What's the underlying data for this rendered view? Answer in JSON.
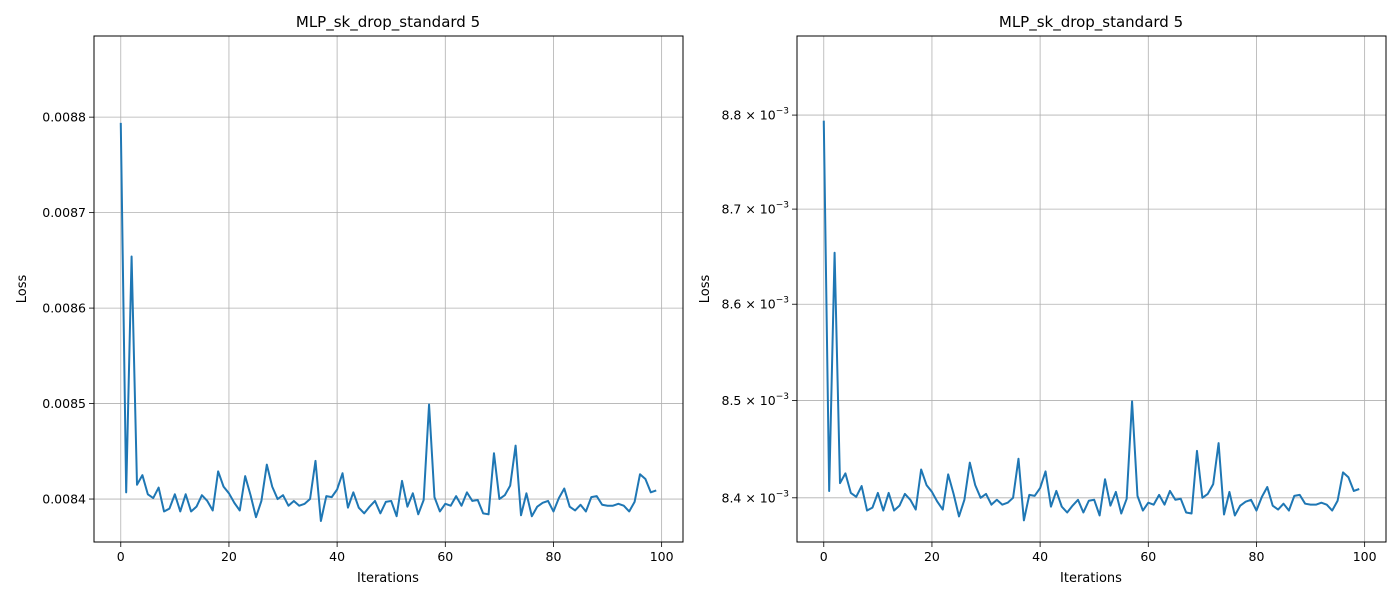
{
  "colors": {
    "line": "#1f77b4",
    "grid": "#b0b0b0"
  },
  "chart_data": [
    {
      "type": "line",
      "title": "MLP_sk_drop_standard 5",
      "xlabel": "Iterations",
      "ylabel": "Loss",
      "xlim": [
        -4.95,
        103.95
      ],
      "ylim": [
        0.008355,
        0.008885
      ],
      "yscale": "linear",
      "grid": true,
      "xticks": [
        0,
        20,
        40,
        60,
        80,
        100
      ],
      "xtick_labels": [
        "0",
        "20",
        "40",
        "60",
        "80",
        "100"
      ],
      "yticks": [
        0.0084,
        0.0085,
        0.0086,
        0.0087,
        0.0088
      ],
      "ytick_labels": [
        "0.0084",
        "0.0085",
        "0.0086",
        "0.0087",
        "0.0088"
      ],
      "series": [
        {
          "x": [
            0,
            1,
            2,
            3,
            4,
            5,
            6,
            7,
            8,
            9,
            10,
            11,
            12,
            13,
            14,
            15,
            16,
            17,
            18,
            19,
            20,
            21,
            22,
            23,
            24,
            25,
            26,
            27,
            28,
            29,
            30,
            31,
            32,
            33,
            34,
            35,
            36,
            37,
            38,
            39,
            40,
            41,
            42,
            43,
            44,
            45,
            46,
            47,
            48,
            49,
            50,
            51,
            52,
            53,
            54,
            55,
            56,
            57,
            58,
            59,
            60,
            61,
            62,
            63,
            64,
            65,
            66,
            67,
            68,
            69,
            70,
            71,
            72,
            73,
            74,
            75,
            76,
            77,
            78,
            79,
            80,
            81,
            82,
            83,
            84,
            85,
            86,
            87,
            88,
            89,
            90,
            91,
            92,
            93,
            94,
            95,
            96,
            97,
            98,
            99
          ],
          "y": [
            0.008794,
            0.008407,
            0.008654,
            0.008415,
            0.008425,
            0.008405,
            0.008401,
            0.008412,
            0.008387,
            0.00839,
            0.008405,
            0.008387,
            0.008405,
            0.008387,
            0.008392,
            0.008404,
            0.008398,
            0.008388,
            0.008429,
            0.008413,
            0.008406,
            0.008396,
            0.008388,
            0.008424,
            0.008404,
            0.008381,
            0.008398,
            0.008436,
            0.008413,
            0.0084,
            0.008404,
            0.008393,
            0.008398,
            0.008393,
            0.008395,
            0.0084,
            0.00844,
            0.008377,
            0.008403,
            0.008402,
            0.00841,
            0.008427,
            0.008391,
            0.008407,
            0.008391,
            0.008385,
            0.008392,
            0.008398,
            0.008385,
            0.008397,
            0.008398,
            0.008382,
            0.008419,
            0.008392,
            0.008406,
            0.008384,
            0.008399,
            0.008499,
            0.008402,
            0.008387,
            0.008395,
            0.008393,
            0.008403,
            0.008393,
            0.008407,
            0.008398,
            0.008399,
            0.008385,
            0.008384,
            0.008448,
            0.0084,
            0.008404,
            0.008414,
            0.008456,
            0.008383,
            0.008406,
            0.008382,
            0.008392,
            0.008396,
            0.008398,
            0.008387,
            0.008401,
            0.008411,
            0.008392,
            0.008388,
            0.008394,
            0.008387,
            0.008402,
            0.008403,
            0.008394,
            0.008393,
            0.008393,
            0.008395,
            0.008393,
            0.008387,
            0.008397,
            0.008426,
            0.008421,
            0.008407,
            0.008409
          ]
        }
      ]
    },
    {
      "type": "line",
      "title": "MLP_sk_drop_standard 5",
      "xlabel": "Iterations",
      "ylabel": "Loss",
      "xlim": [
        -4.95,
        103.95
      ],
      "ylim": [
        0.008355,
        0.008885
      ],
      "yscale": "log",
      "grid": true,
      "xticks": [
        0,
        20,
        40,
        60,
        80,
        100
      ],
      "xtick_labels": [
        "0",
        "20",
        "40",
        "60",
        "80",
        "100"
      ],
      "yticks": [
        0.0084,
        0.0085,
        0.0086,
        0.0087,
        0.0088
      ],
      "ytick_labels": [
        {
          "mant": "8.4",
          "mult": "×",
          "base": "10",
          "exp": "−3"
        },
        {
          "mant": "8.5",
          "mult": "×",
          "base": "10",
          "exp": "−3"
        },
        {
          "mant": "8.6",
          "mult": "×",
          "base": "10",
          "exp": "−3"
        },
        {
          "mant": "8.7",
          "mult": "×",
          "base": "10",
          "exp": "−3"
        },
        {
          "mant": "8.8",
          "mult": "×",
          "base": "10",
          "exp": "−3"
        }
      ],
      "series": [
        {
          "x": [
            0,
            1,
            2,
            3,
            4,
            5,
            6,
            7,
            8,
            9,
            10,
            11,
            12,
            13,
            14,
            15,
            16,
            17,
            18,
            19,
            20,
            21,
            22,
            23,
            24,
            25,
            26,
            27,
            28,
            29,
            30,
            31,
            32,
            33,
            34,
            35,
            36,
            37,
            38,
            39,
            40,
            41,
            42,
            43,
            44,
            45,
            46,
            47,
            48,
            49,
            50,
            51,
            52,
            53,
            54,
            55,
            56,
            57,
            58,
            59,
            60,
            61,
            62,
            63,
            64,
            65,
            66,
            67,
            68,
            69,
            70,
            71,
            72,
            73,
            74,
            75,
            76,
            77,
            78,
            79,
            80,
            81,
            82,
            83,
            84,
            85,
            86,
            87,
            88,
            89,
            90,
            91,
            92,
            93,
            94,
            95,
            96,
            97,
            98,
            99
          ],
          "y": [
            0.008794,
            0.008407,
            0.008654,
            0.008415,
            0.008425,
            0.008405,
            0.008401,
            0.008412,
            0.008387,
            0.00839,
            0.008405,
            0.008387,
            0.008405,
            0.008387,
            0.008392,
            0.008404,
            0.008398,
            0.008388,
            0.008429,
            0.008413,
            0.008406,
            0.008396,
            0.008388,
            0.008424,
            0.008404,
            0.008381,
            0.008398,
            0.008436,
            0.008413,
            0.0084,
            0.008404,
            0.008393,
            0.008398,
            0.008393,
            0.008395,
            0.0084,
            0.00844,
            0.008377,
            0.008403,
            0.008402,
            0.00841,
            0.008427,
            0.008391,
            0.008407,
            0.008391,
            0.008385,
            0.008392,
            0.008398,
            0.008385,
            0.008397,
            0.008398,
            0.008382,
            0.008419,
            0.008392,
            0.008406,
            0.008384,
            0.008399,
            0.008499,
            0.008402,
            0.008387,
            0.008395,
            0.008393,
            0.008403,
            0.008393,
            0.008407,
            0.008398,
            0.008399,
            0.008385,
            0.008384,
            0.008448,
            0.0084,
            0.008404,
            0.008414,
            0.008456,
            0.008383,
            0.008406,
            0.008382,
            0.008392,
            0.008396,
            0.008398,
            0.008387,
            0.008401,
            0.008411,
            0.008392,
            0.008388,
            0.008394,
            0.008387,
            0.008402,
            0.008403,
            0.008394,
            0.008393,
            0.008393,
            0.008395,
            0.008393,
            0.008387,
            0.008397,
            0.008426,
            0.008421,
            0.008407,
            0.008409
          ]
        }
      ]
    }
  ]
}
